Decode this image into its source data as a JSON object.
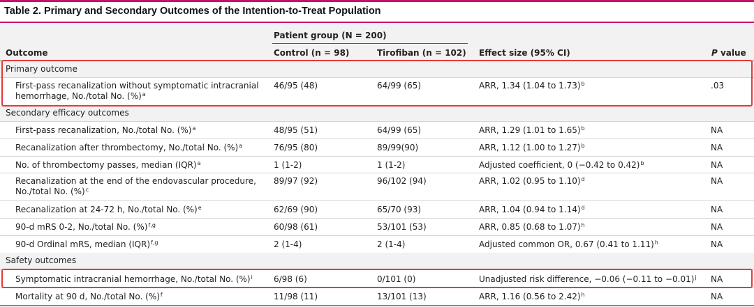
{
  "caption": "Table 2. Primary and Secondary Outcomes of the Intention-to-Treat Population",
  "header": {
    "group_label": "Patient group (N = 200)",
    "outcome": "Outcome",
    "control": "Control (n = 98)",
    "tirofiban": "Tirofiban (n = 102)",
    "effect": "Effect size (95% CI)",
    "p_italic": "P",
    "p_rest": " value"
  },
  "sections": {
    "primary": "Primary outcome",
    "secondary": "Secondary efficacy outcomes",
    "safety": "Safety outcomes"
  },
  "rows": [
    {
      "outcome": "First-pass recanalization without symptomatic intracranial hemorrhage, No./total No. (%)",
      "outcome_sup": "a",
      "control": "46/95 (48)",
      "tirofiban": "64/99 (65)",
      "effect": "ARR, 1.34 (1.04 to 1.73)",
      "effect_sup": "b",
      "p": ".03"
    },
    {
      "outcome": "First-pass recanalization, No./total No. (%)",
      "outcome_sup": "a",
      "control": "48/95 (51)",
      "tirofiban": "64/99 (65)",
      "effect": "ARR, 1.29 (1.01 to 1.65)",
      "effect_sup": "b",
      "p": "NA"
    },
    {
      "outcome": "Recanalization after thrombectomy, No./total No. (%)",
      "outcome_sup": "a",
      "control": "76/95 (80)",
      "tirofiban": "89/99(90)",
      "effect": "ARR, 1.12 (1.00 to 1.27)",
      "effect_sup": "b",
      "p": "NA"
    },
    {
      "outcome": "No. of thrombectomy passes, median (IQR)",
      "outcome_sup": "a",
      "control": "1 (1-2)",
      "tirofiban": "1 (1-2)",
      "effect": "Adjusted coefficient, 0 (−0.42 to 0.42)",
      "effect_sup": "b",
      "p": "NA"
    },
    {
      "outcome": "Recanalization at the end of the endovascular procedure, No./total No. (%)",
      "outcome_sup": "c",
      "control": "89/97 (92)",
      "tirofiban": "96/102 (94)",
      "effect": "ARR, 1.02 (0.95 to 1.10)",
      "effect_sup": "d",
      "p": "NA"
    },
    {
      "outcome": "Recanalization at 24-72 h, No./total No. (%)",
      "outcome_sup": "e",
      "control": "62/69 (90)",
      "tirofiban": "65/70 (93)",
      "effect": "ARR, 1.04 (0.94 to 1.14)",
      "effect_sup": "d",
      "p": "NA"
    },
    {
      "outcome": "90-d mRS 0-2, No./total No. (%)",
      "outcome_sup": "f,g",
      "control": "60/98 (61)",
      "tirofiban": "53/101 (53)",
      "effect": "ARR, 0.85 (0.68 to 1.07)",
      "effect_sup": "h",
      "p": "NA"
    },
    {
      "outcome": "90-d Ordinal mRS, median (IQR)",
      "outcome_sup": "f,g",
      "control": "2 (1-4)",
      "tirofiban": "2 (1-4)",
      "effect": "Adjusted common OR, 0.67 (0.41 to 1.11)",
      "effect_sup": "h",
      "p": "NA"
    },
    {
      "outcome": "Symptomatic intracranial hemorrhage, No./total No. (%)",
      "outcome_sup": "i",
      "control": "6/98 (6)",
      "tirofiban": "0/101 (0)",
      "effect": "Unadjusted risk difference, −0.06 (−0.11 to −0.01)",
      "effect_sup": "j",
      "p": "NA"
    },
    {
      "outcome": "Mortality at 90 d, No./total No. (%)",
      "outcome_sup": "f",
      "control": "11/98 (11)",
      "tirofiban": "13/101 (13)",
      "effect": "ARR, 1.16 (0.56 to 2.42)",
      "effect_sup": "h",
      "p": "NA"
    }
  ],
  "highlight_color": "#e53a3a",
  "accent_color": "#c8116b"
}
